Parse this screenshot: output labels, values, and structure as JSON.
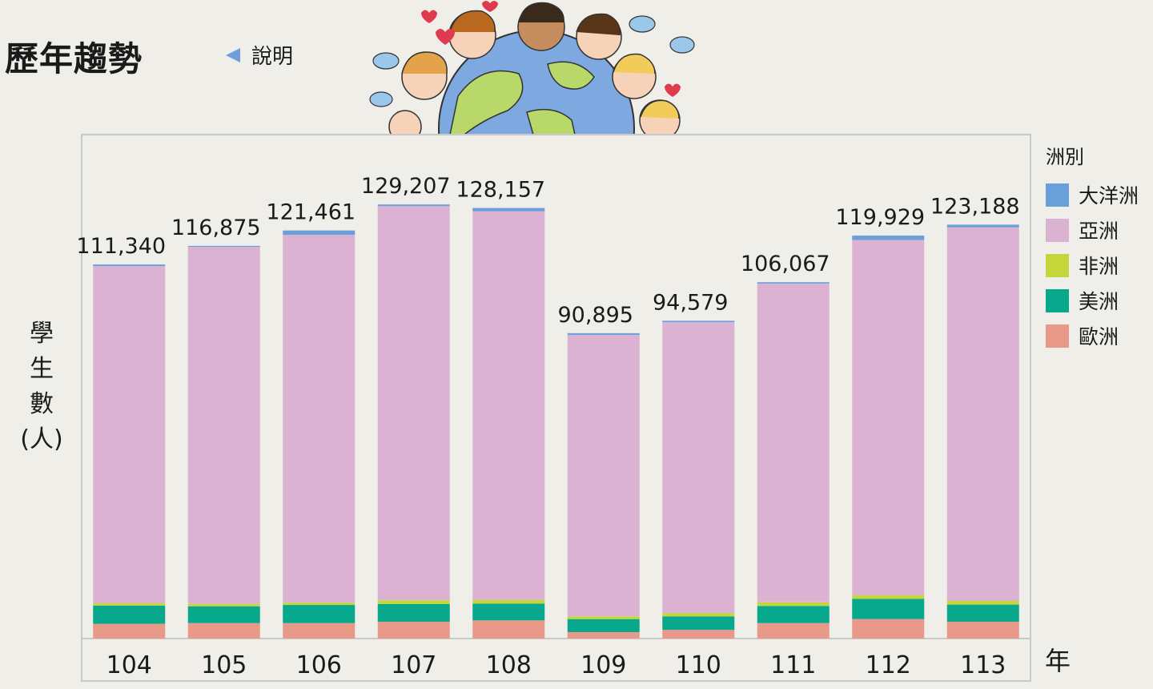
{
  "header": {
    "title": "歷年趨勢",
    "help_label": "說明"
  },
  "chart_data": {
    "type": "bar",
    "stacked": true,
    "categories": [
      "104",
      "105",
      "106",
      "107",
      "108",
      "109",
      "110",
      "111",
      "112",
      "113"
    ],
    "totals": [
      111340,
      116875,
      121461,
      129207,
      128157,
      90895,
      94579,
      106067,
      119929,
      123188
    ],
    "total_labels": [
      "111,340",
      "116,875",
      "121,461",
      "129,207",
      "128,157",
      "90,895",
      "94,579",
      "106,067",
      "119,929",
      "123,188"
    ],
    "series": [
      {
        "name": "歐洲",
        "color": "#e8998a",
        "values": [
          4400,
          4600,
          4600,
          5000,
          5400,
          1900,
          2600,
          4600,
          5800,
          5000
        ]
      },
      {
        "name": "美洲",
        "color": "#07a88b",
        "values": [
          5400,
          5000,
          5400,
          5300,
          5000,
          3900,
          4000,
          5100,
          6000,
          5100
        ]
      },
      {
        "name": "非洲",
        "color": "#c4d63a",
        "values": [
          700,
          700,
          700,
          1100,
          1100,
          800,
          1000,
          1100,
          1100,
          1100
        ]
      },
      {
        "name": "亞洲",
        "color": "#dcb2d3",
        "values": [
          100340,
          106275,
          109461,
          117307,
          115657,
          83795,
          86579,
          94867,
          105729,
          111188
        ]
      },
      {
        "name": "大洋洲",
        "color": "#6b9fd9",
        "values": [
          500,
          300,
          1300,
          500,
          1000,
          500,
          400,
          400,
          1300,
          800
        ]
      }
    ],
    "ylabel": "學生數(人)",
    "xlabel": "年",
    "legend_title": "洲別",
    "legend_position": "right",
    "ylim": [
      0,
      150000
    ],
    "grid": false
  },
  "colors": {
    "background": "#efeee8",
    "plot_border": "#c9c9c9",
    "accent_blue": "#6f9fd8"
  }
}
